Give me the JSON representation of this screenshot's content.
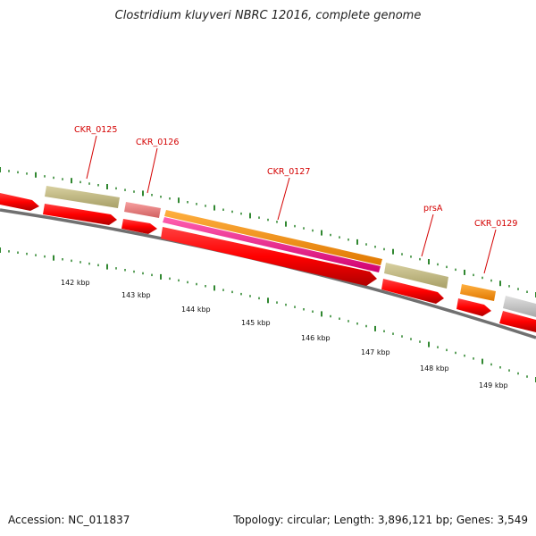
{
  "title": "Clostridium kluyveri NBRC 12016, complete genome",
  "footer": {
    "accession": "Accession: NC_011837",
    "info": "Topology: circular; Length: 3,896,121 bp; Genes: 3,549"
  },
  "scale_labels": [
    "142 kbp",
    "143 kbp",
    "144 kbp",
    "145 kbp",
    "146 kbp",
    "147 kbp",
    "148 kbp",
    "149 kbp"
  ],
  "gene_labels": [
    "CKR_0125",
    "CKR_0126",
    "CKR_0127",
    "prsA",
    "CKR_0129"
  ],
  "colors": {
    "cds": "#ff0000",
    "gene_khaki": "#c8c088",
    "gene_pink": "#f08080",
    "gene_orange": "#ff9900",
    "gene_magenta": "#ff1493",
    "gene_grey": "#c8c8c8",
    "backbone": "#808080",
    "ticks": "#1a7a1a",
    "label": "#d40000"
  }
}
